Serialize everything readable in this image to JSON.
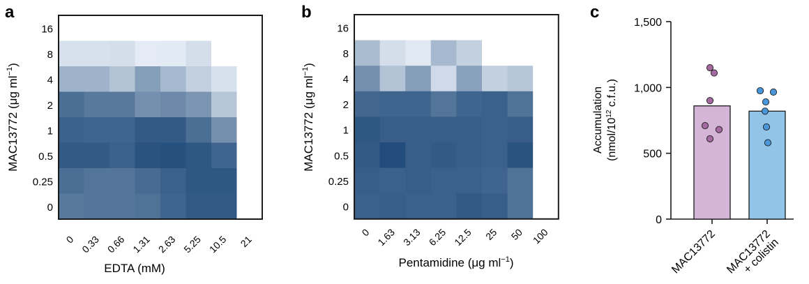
{
  "panels": [
    {
      "letter": "a",
      "chart_data": {
        "type": "heatmap",
        "xlabel": "EDTA (mM)",
        "ylabel_prefix": "MAC13772 (μg ml",
        "ylabel_sup": "−1",
        "ylabel_suffix": ")",
        "x_categories": [
          "0",
          "0.33",
          "0.66",
          "1.31",
          "2.63",
          "5.25",
          "10.5",
          "21"
        ],
        "y_categories": [
          "16",
          "8",
          "4",
          "2",
          "1",
          "0.5",
          "0.25",
          "0"
        ],
        "values": [
          [
            0.0,
            0.0,
            0.0,
            0.0,
            0.0,
            0.0,
            0.0,
            0.0
          ],
          [
            0.1,
            0.1,
            0.12,
            0.04,
            0.05,
            0.12,
            0.0,
            0.0
          ],
          [
            0.38,
            0.38,
            0.28,
            0.5,
            0.34,
            0.2,
            0.1,
            0.0
          ],
          [
            0.78,
            0.72,
            0.72,
            0.58,
            0.62,
            0.55,
            0.26,
            0.0
          ],
          [
            0.86,
            0.84,
            0.84,
            0.9,
            0.9,
            0.78,
            0.58,
            0.0
          ],
          [
            0.9,
            0.9,
            0.86,
            0.94,
            0.96,
            0.92,
            0.84,
            0.0
          ],
          [
            0.78,
            0.74,
            0.74,
            0.8,
            0.86,
            0.92,
            0.92,
            0.0
          ],
          [
            0.72,
            0.74,
            0.74,
            0.76,
            0.84,
            0.9,
            0.9,
            0.0
          ]
        ]
      }
    },
    {
      "letter": "b",
      "chart_data": {
        "type": "heatmap",
        "xlabel_prefix": "Pentamidine (μg ml",
        "xlabel_sup": "−1",
        "xlabel_suffix": ")",
        "ylabel_prefix": "MAC13772 (μg ml",
        "ylabel_sup": "−1",
        "ylabel_suffix": ")",
        "x_categories": [
          "0",
          "1.63",
          "3.13",
          "6.25",
          "12.5",
          "25",
          "50",
          "100"
        ],
        "y_categories": [
          "16",
          "8",
          "4",
          "2",
          "1",
          "0.5",
          "0.25",
          "0"
        ],
        "values": [
          [
            0.0,
            0.0,
            0.0,
            0.0,
            0.0,
            0.0,
            0.0,
            0.0
          ],
          [
            0.32,
            0.12,
            0.06,
            0.34,
            0.2,
            0.0,
            0.0,
            0.0
          ],
          [
            0.58,
            0.28,
            0.5,
            0.14,
            0.48,
            0.2,
            0.26,
            0.0
          ],
          [
            0.82,
            0.84,
            0.84,
            0.74,
            0.84,
            0.86,
            0.76,
            0.0
          ],
          [
            0.92,
            0.88,
            0.88,
            0.88,
            0.88,
            0.86,
            0.88,
            0.0
          ],
          [
            0.9,
            0.98,
            0.88,
            0.9,
            0.88,
            0.86,
            0.94,
            0.0
          ],
          [
            0.88,
            0.86,
            0.88,
            0.86,
            0.86,
            0.84,
            0.76,
            0.0
          ],
          [
            0.86,
            0.88,
            0.86,
            0.86,
            0.9,
            0.88,
            0.76,
            0.0
          ]
        ]
      }
    },
    {
      "letter": "c",
      "chart_data": {
        "type": "bar",
        "ylabel_line1": "Accumulation",
        "ylabel_line2_prefix": "(nmol/10",
        "ylabel_line2_sup": "12",
        "ylabel_line2_suffix": " c.f.u.)",
        "ylim": [
          0,
          1500
        ],
        "yticks": [
          "0",
          "500",
          "1,000",
          "1,500"
        ],
        "ytick_values": [
          0,
          500,
          1000,
          1500
        ],
        "categories": [
          {
            "lines": [
              "MAC13772"
            ]
          },
          {
            "lines": [
              "MAC13772",
              "+ colistin"
            ]
          }
        ],
        "values": [
          860,
          820
        ],
        "points": [
          [
            1150,
            1110,
            900,
            710,
            680,
            610
          ],
          [
            975,
            965,
            890,
            820,
            700,
            580
          ]
        ],
        "bar_colors": [
          "#d4b5d8",
          "#92c4e8"
        ],
        "point_colors": [
          "#a4699f",
          "#4b96d8"
        ]
      }
    }
  ]
}
